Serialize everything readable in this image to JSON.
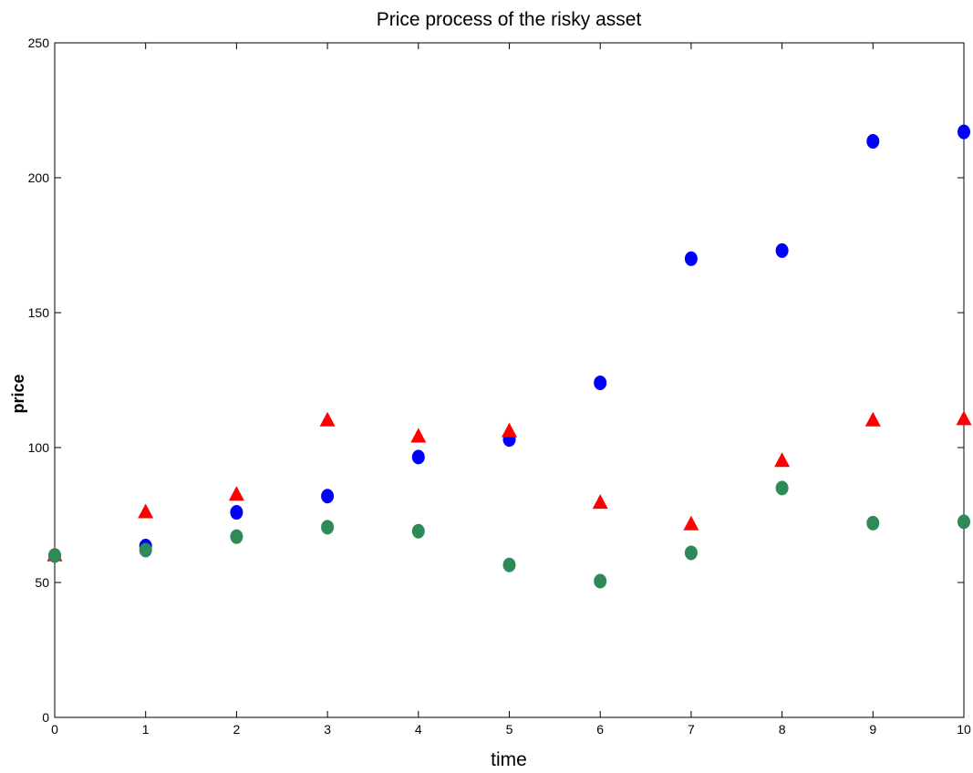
{
  "chart_data": {
    "type": "scatter",
    "title": "Price process of the risky asset",
    "xlabel": "time",
    "ylabel": "price",
    "xlim": [
      0,
      10
    ],
    "ylim": [
      0,
      250
    ],
    "xticks": [
      "0",
      "1",
      "2",
      "3",
      "4",
      "5",
      "6",
      "7",
      "8",
      "9",
      "10"
    ],
    "yticks": [
      "0",
      "50",
      "100",
      "150",
      "200",
      "250"
    ],
    "grid": false,
    "series": [
      {
        "marker": "circle",
        "color": "#0000ff",
        "x": [
          0,
          1,
          2,
          3,
          4,
          5,
          6,
          7,
          8,
          9,
          10
        ],
        "y": [
          60,
          63.5,
          76,
          82,
          96.5,
          103,
          124,
          170,
          173,
          213.5,
          217
        ]
      },
      {
        "marker": "triangle",
        "color": "#ff0000",
        "x": [
          0,
          1,
          2,
          3,
          4,
          5,
          6,
          7,
          8,
          9,
          10
        ],
        "y": [
          60,
          76,
          82.5,
          110,
          104,
          106,
          79.5,
          71.5,
          95,
          110,
          110.5
        ]
      },
      {
        "marker": "circle",
        "color": "#2e8b57",
        "x": [
          0,
          1,
          2,
          3,
          4,
          5,
          6,
          7,
          8,
          9,
          10
        ],
        "y": [
          60,
          62,
          67,
          70.5,
          69,
          56.5,
          50.5,
          61,
          85,
          72,
          72.5
        ]
      }
    ]
  }
}
